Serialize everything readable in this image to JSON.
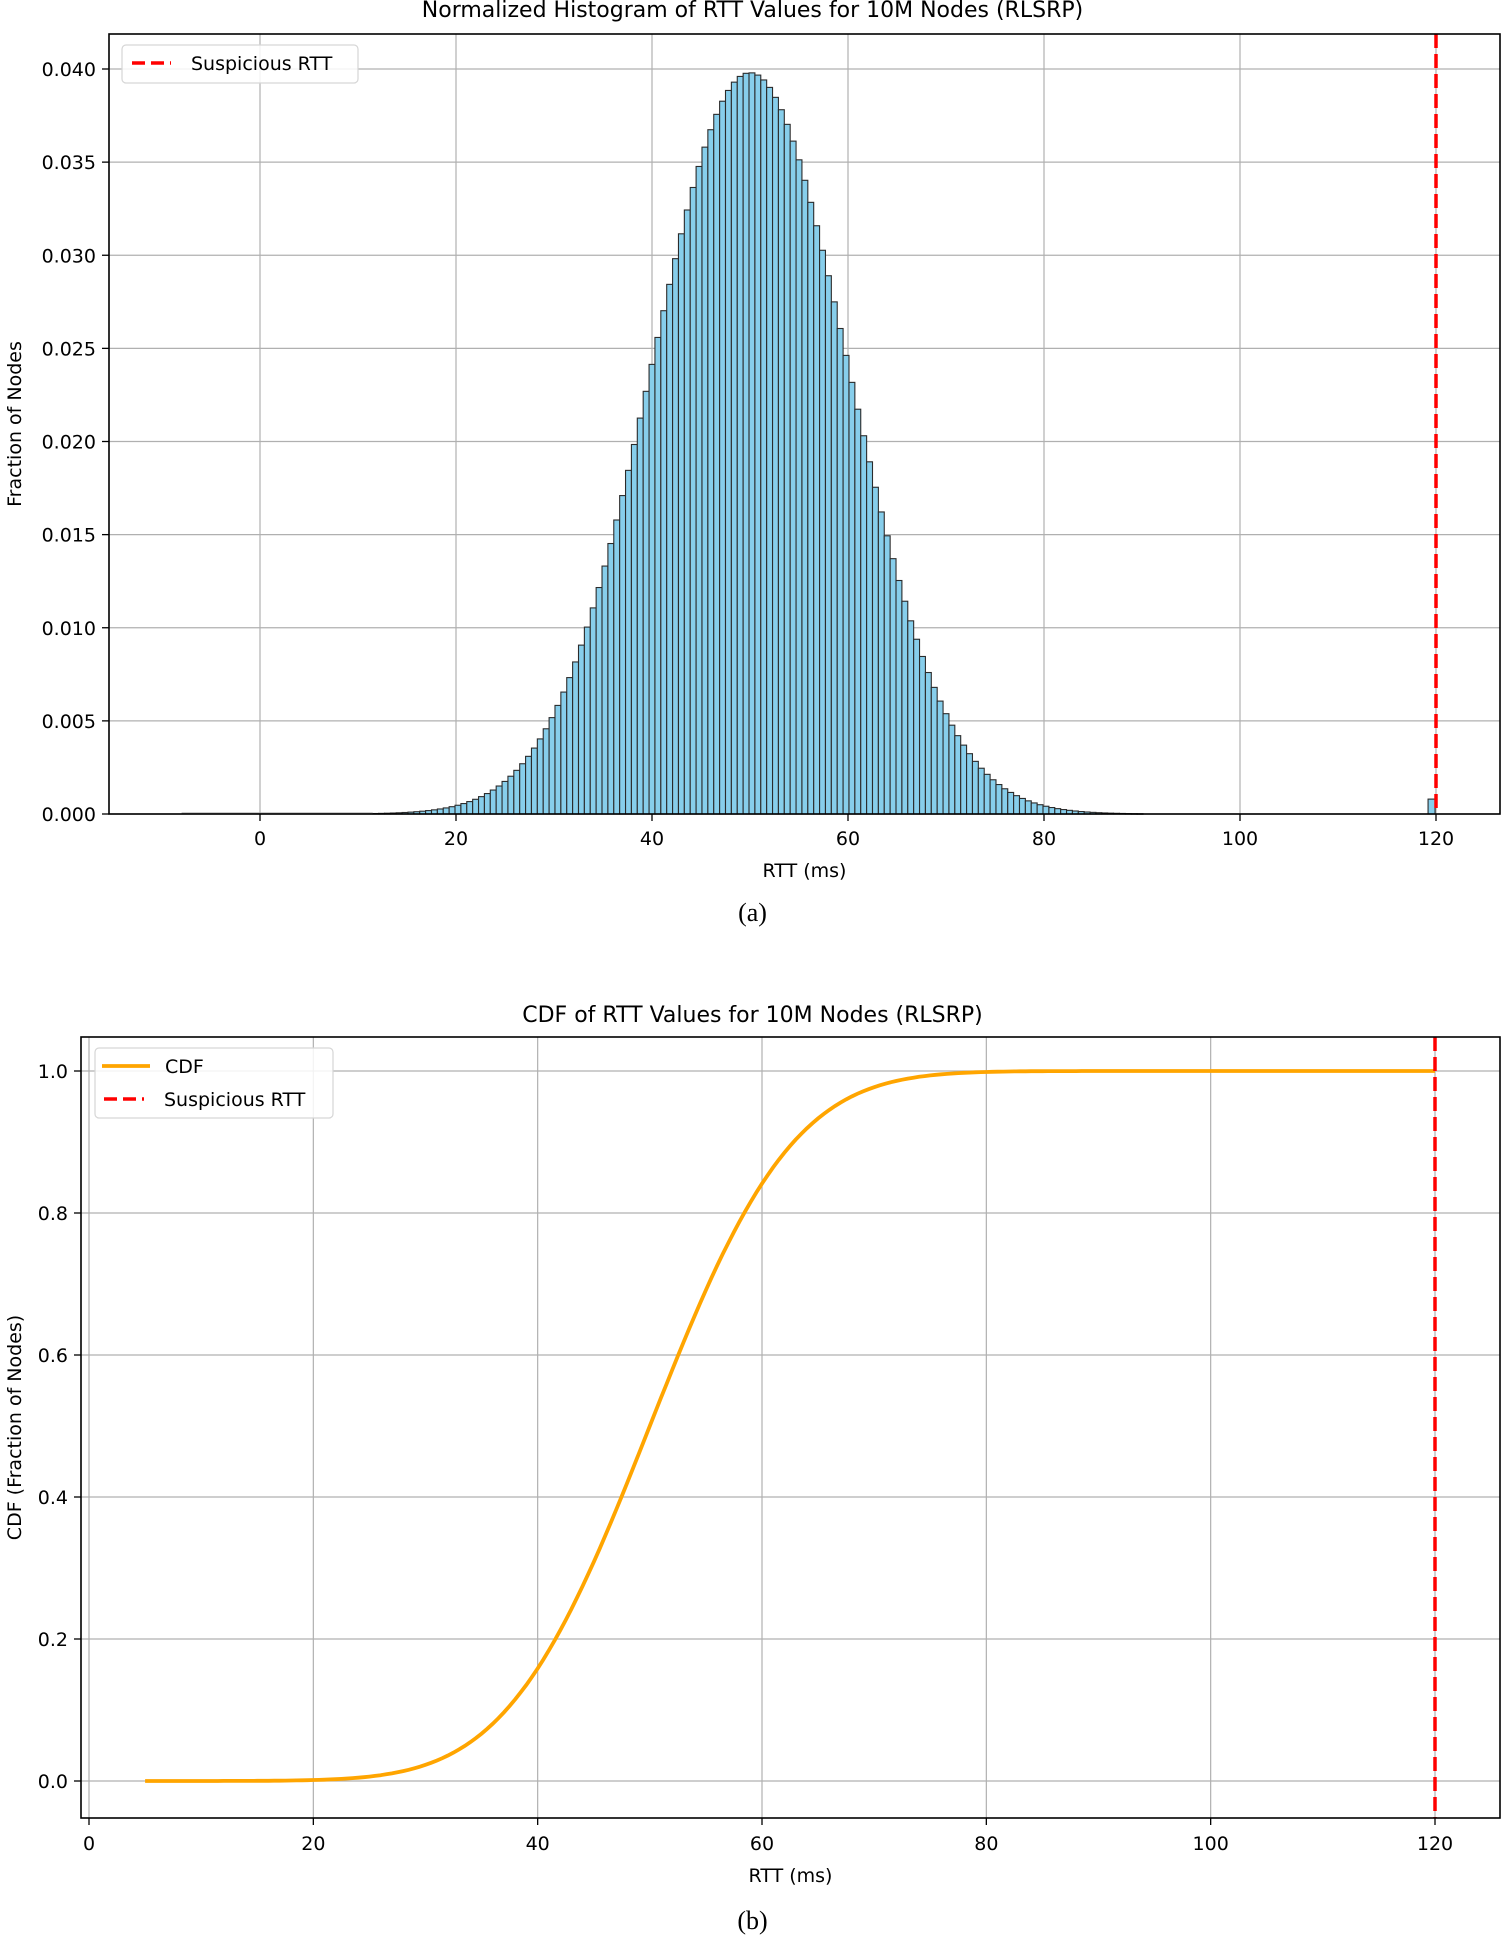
{
  "figure_a": {
    "title": "Normalized Histogram of RTT Values for 10M Nodes (RLSRP)",
    "caption": "(a)",
    "xlabel": "RTT (ms)",
    "ylabel": "Fraction of Nodes",
    "legend": [
      {
        "label": "Suspicious RTT",
        "style": "dashed",
        "color": "#ff0000"
      }
    ]
  },
  "figure_b": {
    "title": "CDF of RTT Values for 10M Nodes (RLSRP)",
    "caption": "(b)",
    "xlabel": "RTT (ms)",
    "ylabel": "CDF (Fraction of Nodes)",
    "legend": [
      {
        "label": "CDF",
        "style": "solid",
        "color": "#ffa500"
      },
      {
        "label": "Suspicious RTT",
        "style": "dashed",
        "color": "#ff0000"
      }
    ]
  },
  "colors": {
    "bar_fill": "#87ceeb",
    "bar_edge": "#2b2b2b",
    "cdf_line": "#ffa500",
    "threshold": "#ff0000",
    "grid": "#b0b0b0"
  },
  "chart_data": [
    {
      "type": "bar",
      "title": "Normalized Histogram of RTT Values for 10M Nodes (RLSRP)",
      "xlabel": "RTT (ms)",
      "ylabel": "Fraction of Nodes",
      "xlim": [
        -15,
        126
      ],
      "ylim": [
        0,
        0.042
      ],
      "xticks": [
        0,
        20,
        40,
        60,
        80,
        100,
        120
      ],
      "yticks": [
        0.0,
        0.005,
        0.01,
        0.015,
        0.02,
        0.025,
        0.03,
        0.035,
        0.04
      ],
      "grid": true,
      "legend_position": "upper left",
      "distribution": {
        "shape": "normal",
        "mean": 50,
        "std": 10,
        "bin_width": 1.0,
        "range": [
          11.5,
          89.5
        ],
        "peak": 0.0398
      },
      "outlier_bar": {
        "x": 119.7,
        "value": 0.0008
      },
      "threshold_line": {
        "x": 120,
        "label": "Suspicious RTT",
        "style": "dashed",
        "color": "#ff0000"
      },
      "sample_values": [
        {
          "x": 15,
          "y": 0.0001
        },
        {
          "x": 20,
          "y": 0.0005
        },
        {
          "x": 25,
          "y": 0.0018
        },
        {
          "x": 30,
          "y": 0.0055
        },
        {
          "x": 35,
          "y": 0.013
        },
        {
          "x": 40,
          "y": 0.0242
        },
        {
          "x": 45,
          "y": 0.0352
        },
        {
          "x": 50,
          "y": 0.0398
        },
        {
          "x": 55,
          "y": 0.0352
        },
        {
          "x": 60,
          "y": 0.0242
        },
        {
          "x": 65,
          "y": 0.013
        },
        {
          "x": 70,
          "y": 0.0055
        },
        {
          "x": 75,
          "y": 0.0018
        },
        {
          "x": 80,
          "y": 0.0005
        },
        {
          "x": 85,
          "y": 0.0001
        },
        {
          "x": 120,
          "y": 0.0008
        }
      ]
    },
    {
      "type": "line",
      "title": "CDF of RTT Values for 10M Nodes (RLSRP)",
      "xlabel": "RTT (ms)",
      "ylabel": "CDF (Fraction of Nodes)",
      "xlim": [
        -1,
        126
      ],
      "ylim": [
        -0.05,
        1.05
      ],
      "xticks": [
        0,
        20,
        40,
        60,
        80,
        100,
        120
      ],
      "yticks": [
        0.0,
        0.2,
        0.4,
        0.6,
        0.8,
        1.0
      ],
      "grid": true,
      "legend_position": "upper left",
      "series": [
        {
          "name": "CDF",
          "color": "#ffa500",
          "x": [
            5,
            10,
            15,
            20,
            25,
            30,
            35,
            40,
            45,
            50,
            55,
            60,
            65,
            70,
            75,
            80,
            90,
            100,
            110,
            120
          ],
          "values": [
            0.0,
            0.0,
            0.0003,
            0.0013,
            0.0062,
            0.0228,
            0.0668,
            0.1587,
            0.3085,
            0.5,
            0.6915,
            0.8413,
            0.9332,
            0.9772,
            0.9938,
            0.9987,
            0.9995,
            0.9995,
            0.9995,
            1.0
          ]
        }
      ],
      "threshold_line": {
        "x": 120,
        "label": "Suspicious RTT",
        "style": "dashed",
        "color": "#ff0000"
      }
    }
  ]
}
